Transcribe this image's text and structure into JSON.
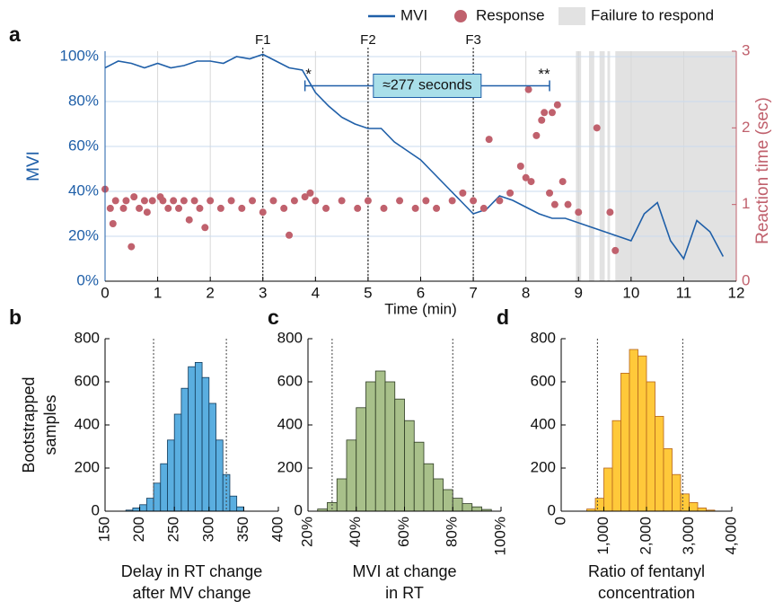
{
  "chart_data": [
    {
      "type": "line",
      "panel": "a",
      "xlabel": "Time (min)",
      "ylabel": "MVI",
      "y2label": "Reaction time (sec)",
      "xlim": [
        0,
        12
      ],
      "xticks": [
        0,
        1,
        2,
        3,
        4,
        5,
        6,
        7,
        8,
        9,
        10,
        11,
        12
      ],
      "ylim": [
        0,
        102.4
      ],
      "yticks": [
        {
          "value": 0,
          "label": "0%"
        },
        {
          "value": 20,
          "label": "20%"
        },
        {
          "value": 40,
          "label": "40%"
        },
        {
          "value": 60,
          "label": "60%"
        },
        {
          "value": 80,
          "label": "80%"
        },
        {
          "value": 100,
          "label": "100%"
        }
      ],
      "y2lim": [
        0,
        3
      ],
      "y2ticks": [
        0,
        1,
        2,
        3
      ],
      "grid": true,
      "series": [
        {
          "name": "MVI",
          "type": "line",
          "color": "#1f5fa8",
          "x": [
            0,
            0.25,
            0.5,
            0.75,
            1,
            1.25,
            1.5,
            1.75,
            2,
            2.25,
            2.5,
            2.75,
            3,
            3.25,
            3.5,
            3.75,
            4,
            4.25,
            4.5,
            4.75,
            5,
            5.25,
            5.5,
            5.75,
            6,
            6.25,
            6.5,
            6.75,
            7,
            7.25,
            7.5,
            7.75,
            8,
            8.25,
            8.5,
            8.75,
            9,
            9.25,
            9.5,
            9.75,
            10,
            10.25,
            10.5,
            10.75,
            11,
            11.25,
            11.5,
            11.75
          ],
          "values": [
            95,
            98,
            97,
            95,
            97,
            95,
            96,
            98,
            98,
            97,
            100,
            99,
            101,
            98,
            95,
            94,
            84,
            78,
            73,
            70,
            68,
            68,
            62,
            58,
            54,
            48,
            42,
            36,
            30,
            32,
            38,
            36,
            33,
            30,
            28,
            28,
            26,
            24,
            22,
            20,
            18,
            30,
            35,
            18,
            10,
            27,
            22,
            11
          ]
        },
        {
          "name": "Response",
          "type": "scatter",
          "color": "#c0616d",
          "axis": "y2",
          "x": [
            0,
            0.1,
            0.15,
            0.2,
            0.35,
            0.4,
            0.5,
            0.55,
            0.65,
            0.75,
            0.8,
            0.9,
            1.05,
            1.1,
            1.2,
            1.3,
            1.4,
            1.5,
            1.6,
            1.7,
            1.8,
            1.9,
            2.0,
            2.2,
            2.4,
            2.6,
            2.8,
            3.0,
            3.2,
            3.4,
            3.5,
            3.6,
            3.8,
            3.9,
            4.0,
            4.2,
            4.5,
            4.8,
            5.0,
            5.3,
            5.6,
            5.9,
            6.1,
            6.3,
            6.6,
            6.8,
            7.0,
            7.2,
            7.3,
            7.5,
            7.7,
            7.9,
            8.0,
            8.05,
            8.1,
            8.2,
            8.3,
            8.35,
            8.45,
            8.5,
            8.55,
            8.6,
            8.7,
            8.8,
            9.0,
            9.35,
            9.6,
            9.7
          ],
          "values": [
            1.2,
            0.95,
            0.75,
            1.05,
            0.95,
            1.05,
            0.45,
            1.1,
            0.95,
            1.05,
            0.9,
            1.05,
            1.1,
            1.05,
            0.95,
            1.05,
            0.95,
            1.05,
            0.8,
            1.05,
            0.95,
            0.7,
            1.05,
            0.95,
            1.05,
            0.95,
            1.05,
            0.9,
            1.05,
            0.95,
            0.6,
            1.05,
            1.1,
            1.15,
            1.05,
            0.95,
            1.05,
            0.95,
            1.05,
            0.95,
            1.05,
            0.95,
            1.05,
            0.95,
            1.05,
            1.15,
            1.05,
            0.95,
            1.85,
            1.05,
            1.15,
            1.5,
            1.35,
            2.5,
            1.3,
            1.9,
            2.1,
            2.2,
            1.15,
            2.2,
            1.0,
            2.3,
            1.3,
            1.0,
            0.9,
            2.0,
            0.9,
            0.4
          ]
        }
      ],
      "shaded_label": "Failure to respond",
      "shaded_color": "#e2e2e2",
      "shaded_regions": [
        [
          8.95,
          9.05
        ],
        [
          9.2,
          9.3
        ],
        [
          9.4,
          9.5
        ],
        [
          9.55,
          9.6
        ],
        [
          9.7,
          12
        ]
      ],
      "vlines": [
        {
          "x": 3,
          "label": "F1"
        },
        {
          "x": 5,
          "label": "F2"
        },
        {
          "x": 7,
          "label": "F3"
        }
      ],
      "annotation": {
        "text": "≈277 seconds",
        "x": [
          3.8,
          8.45
        ],
        "y": 87,
        "start_mark": "*",
        "end_mark": "**"
      }
    },
    {
      "type": "histogram",
      "panel": "b",
      "color": "#5aaee0",
      "edgecolor": "#123a5a",
      "xlabel": [
        "Delay in RT change",
        "after MV change"
      ],
      "ylabel": [
        "Bootstrapped",
        "samples"
      ],
      "xlim": [
        150,
        400
      ],
      "xticks": [
        150,
        200,
        250,
        300,
        350,
        400
      ],
      "ylim": [
        0,
        800
      ],
      "yticks": [
        0,
        200,
        400,
        600,
        800
      ],
      "bins": [
        180,
        190,
        200,
        210,
        220,
        230,
        240,
        250,
        260,
        270,
        280,
        290,
        300,
        310,
        320,
        330,
        340,
        350
      ],
      "counts": [
        5,
        15,
        30,
        60,
        130,
        220,
        330,
        450,
        570,
        670,
        690,
        620,
        500,
        330,
        170,
        70,
        20
      ],
      "vlines": [
        220,
        325
      ]
    },
    {
      "type": "histogram",
      "panel": "c",
      "color": "#a8c08a",
      "edgecolor": "#2c3a22",
      "xlabel": [
        "MVI at change",
        "in RT"
      ],
      "xlim": [
        20,
        100
      ],
      "xticks": [
        {
          "value": 20,
          "label": "20%"
        },
        {
          "value": 40,
          "label": "40%"
        },
        {
          "value": 60,
          "label": "60%"
        },
        {
          "value": 80,
          "label": "80%"
        },
        {
          "value": 100,
          "label": "100%"
        }
      ],
      "ylim": [
        0,
        800
      ],
      "yticks": [
        0,
        200,
        400,
        600,
        800
      ],
      "bins": [
        24,
        28,
        32,
        36,
        40,
        44,
        48,
        52,
        56,
        60,
        64,
        68,
        72,
        76,
        80,
        84,
        88,
        92,
        96
      ],
      "counts": [
        10,
        40,
        150,
        330,
        480,
        600,
        650,
        600,
        520,
        420,
        320,
        220,
        150,
        100,
        60,
        35,
        20,
        8
      ],
      "vlines": [
        30,
        80
      ]
    },
    {
      "type": "histogram",
      "panel": "d",
      "color": "#ffc93a",
      "edgecolor": "#b5651d",
      "xlabel": [
        "Ratio of fentanyl",
        "concentration"
      ],
      "xlim": [
        0,
        4000
      ],
      "xticks": [
        0,
        {
          "value": 1000,
          "label": "1,000"
        },
        {
          "value": 2000,
          "label": "2,000"
        },
        {
          "value": 3000,
          "label": "3,000"
        },
        {
          "value": 4000,
          "label": "4,000"
        }
      ],
      "ylim": [
        0,
        800
      ],
      "yticks": [
        0,
        200,
        400,
        600,
        800
      ],
      "bins": [
        600,
        800,
        1000,
        1200,
        1400,
        1600,
        1800,
        2000,
        2200,
        2400,
        2600,
        2800,
        3000,
        3200,
        3400,
        3600
      ],
      "counts": [
        10,
        60,
        200,
        420,
        640,
        750,
        720,
        600,
        440,
        290,
        170,
        80,
        40,
        15,
        5
      ],
      "vlines": [
        850,
        2850
      ]
    }
  ]
}
